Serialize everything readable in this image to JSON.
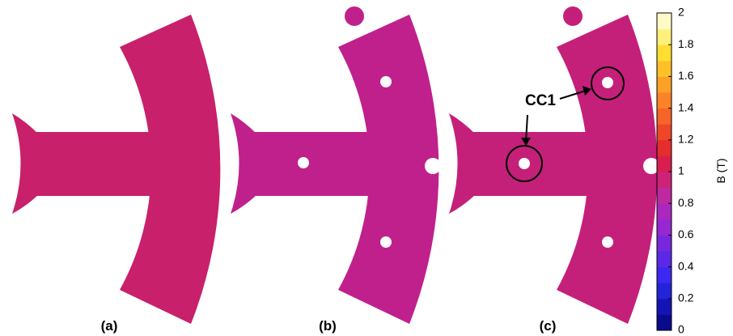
{
  "panels": [
    {
      "label": "(a)"
    },
    {
      "label": "(b)"
    },
    {
      "label": "(c)"
    }
  ],
  "annotation": "CC1",
  "colorbar": {
    "label": "B (T)",
    "lim": [
      0,
      2
    ],
    "ticks": [
      0,
      0.2,
      0.4,
      0.6,
      0.8,
      1,
      1.2,
      1.4,
      1.6,
      1.8,
      2
    ],
    "colors": [
      "#0a0a8c",
      "#1414b4",
      "#2323d8",
      "#3c28f0",
      "#5a28e6",
      "#7828dc",
      "#9628d2",
      "#aa28be",
      "#be28a0",
      "#cc2378",
      "#d81e50",
      "#e42d2d",
      "#ee4628",
      "#f56428",
      "#fa8228",
      "#fca028",
      "#fec028",
      "#ffde30",
      "#fff07a",
      "#fffac8"
    ]
  }
}
